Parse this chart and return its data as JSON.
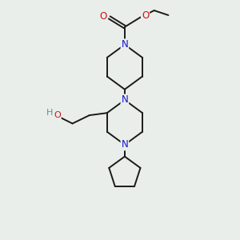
{
  "background_color": "#eaeeea",
  "bond_color": "#1a1a1a",
  "N_color": "#1414cc",
  "O_color": "#cc1414",
  "H_color": "#4a9a9a",
  "figsize": [
    3.0,
    3.0
  ],
  "dpi": 100,
  "xlim": [
    0,
    10
  ],
  "ylim": [
    0,
    10
  ]
}
